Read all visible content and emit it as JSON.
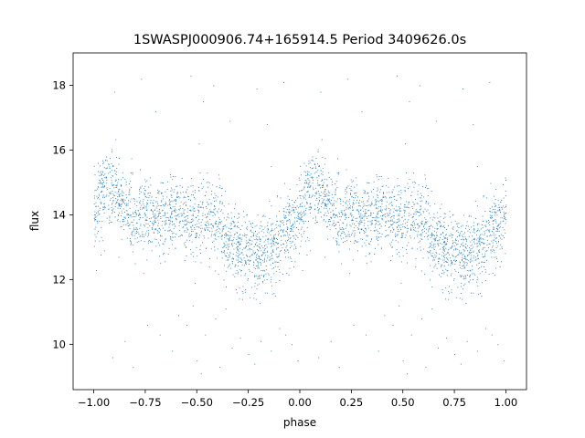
{
  "chart_data": {
    "type": "scatter",
    "title": "1SWASPJ000906.74+165914.5 Period 3409626.0s",
    "xlabel": "phase",
    "ylabel": "flux",
    "xlim": [
      -1.1,
      1.1
    ],
    "ylim": [
      8.6,
      19.0
    ],
    "xticks": [
      -1.0,
      -0.75,
      -0.5,
      -0.25,
      0.0,
      0.25,
      0.5,
      0.75,
      1.0
    ],
    "xtick_labels": [
      "−1.00",
      "−0.75",
      "−0.50",
      "−0.25",
      "0.00",
      "0.25",
      "0.50",
      "0.75",
      "1.00"
    ],
    "yticks": [
      10,
      12,
      14,
      16,
      18
    ],
    "ytick_labels": [
      "10",
      "12",
      "14",
      "16",
      "18"
    ],
    "grid": false,
    "marker_color": "#1f77b4",
    "series": [
      {
        "name": "",
        "trend": {
          "x": [
            0.0,
            0.05,
            0.1,
            0.15,
            0.2,
            0.25,
            0.3,
            0.35,
            0.4,
            0.45,
            0.5,
            0.55,
            0.6,
            0.65,
            0.7,
            0.75,
            0.8,
            0.85,
            0.9,
            0.95,
            1.0
          ],
          "y": [
            14.0,
            14.9,
            14.7,
            14.2,
            13.9,
            14.0,
            13.8,
            13.9,
            14.0,
            13.9,
            13.9,
            14.0,
            13.8,
            13.3,
            13.0,
            12.8,
            12.7,
            12.9,
            13.2,
            13.6,
            14.0
          ]
        },
        "points": [
          [
            0.02,
            15.6
          ],
          [
            0.06,
            15.8
          ],
          [
            0.09,
            15.5
          ],
          [
            0.13,
            15.1
          ],
          [
            0.18,
            15.3
          ],
          [
            0.22,
            14.8
          ],
          [
            0.27,
            14.6
          ],
          [
            0.33,
            15.0
          ],
          [
            0.42,
            14.7
          ],
          [
            0.47,
            14.9
          ],
          [
            0.51,
            16.2
          ],
          [
            0.53,
            17.5
          ],
          [
            0.55,
            15.3
          ],
          [
            0.62,
            14.6
          ],
          [
            0.68,
            14.2
          ],
          [
            0.74,
            14.0
          ],
          [
            0.81,
            13.8
          ],
          [
            0.86,
            15.5
          ],
          [
            0.89,
            14.6
          ],
          [
            0.95,
            14.8
          ],
          [
            0.05,
            12.9
          ],
          [
            0.12,
            12.7
          ],
          [
            0.2,
            12.5
          ],
          [
            0.24,
            12.2
          ],
          [
            0.28,
            12.9
          ],
          [
            0.36,
            12.8
          ],
          [
            0.44,
            12.6
          ],
          [
            0.49,
            11.9
          ],
          [
            0.56,
            12.4
          ],
          [
            0.63,
            12.0
          ],
          [
            0.69,
            11.7
          ],
          [
            0.72,
            11.4
          ],
          [
            0.78,
            11.8
          ],
          [
            0.83,
            11.6
          ],
          [
            0.88,
            11.5
          ],
          [
            0.97,
            12.4
          ],
          [
            0.1,
            17.8
          ],
          [
            0.23,
            18.2
          ],
          [
            0.47,
            18.3
          ],
          [
            0.58,
            18.0
          ],
          [
            0.79,
            17.9
          ],
          [
            0.92,
            18.1
          ],
          [
            0.3,
            17.2
          ],
          [
            0.84,
            16.8
          ],
          [
            0.66,
            16.9
          ],
          [
            0.09,
            9.6
          ],
          [
            0.19,
            9.3
          ],
          [
            0.26,
            10.6
          ],
          [
            0.32,
            10.3
          ],
          [
            0.38,
            9.8
          ],
          [
            0.41,
            10.9
          ],
          [
            0.45,
            10.6
          ],
          [
            0.48,
            11.2
          ],
          [
            0.5,
            9.5
          ],
          [
            0.52,
            9.1
          ],
          [
            0.54,
            10.3
          ],
          [
            0.59,
            10.8
          ],
          [
            0.64,
            11.1
          ],
          [
            0.67,
            9.9
          ],
          [
            0.71,
            10.2
          ],
          [
            0.75,
            9.7
          ],
          [
            0.78,
            9.4
          ],
          [
            0.81,
            10.1
          ],
          [
            0.86,
            9.8
          ],
          [
            0.9,
            10.5
          ],
          [
            0.93,
            10.3
          ],
          [
            0.96,
            10.0
          ],
          [
            0.99,
            9.5
          ],
          [
            0.15,
            10.1
          ],
          [
            0.61,
            9.3
          ]
        ]
      }
    ]
  }
}
